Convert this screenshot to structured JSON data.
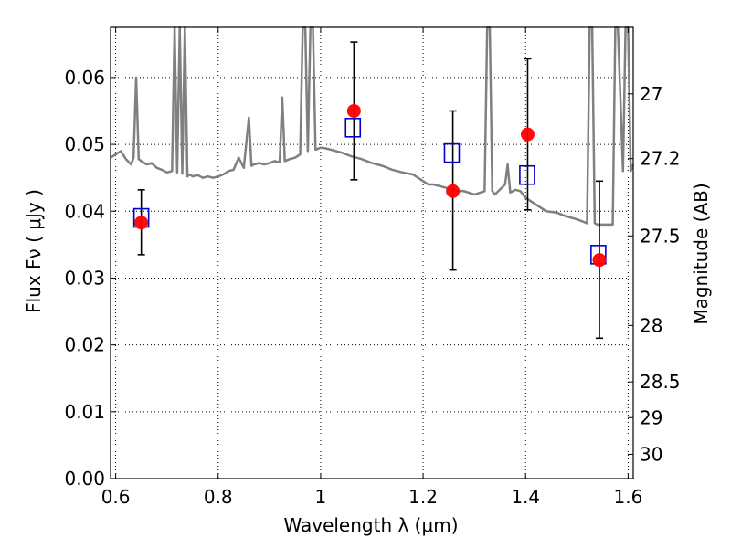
{
  "chart_data": {
    "type": "scatter",
    "xlabel": "Wavelength  λ (μm)",
    "ylabel": "Flux  Fν  ( μJy )",
    "y2label": "Magnitude (AB)",
    "xlim": [
      0.59,
      1.61
    ],
    "ylim": [
      0.0,
      0.0675
    ],
    "grid": true,
    "x_ticks": [
      {
        "value": 0.6,
        "label": "0.6"
      },
      {
        "value": 0.8,
        "label": "0.8"
      },
      {
        "value": 1.0,
        "label": "1"
      },
      {
        "value": 1.2,
        "label": "1.2"
      },
      {
        "value": 1.4,
        "label": "1.4"
      },
      {
        "value": 1.6,
        "label": "1.6"
      }
    ],
    "y_ticks": [
      {
        "value": 0.0,
        "label": "0.00"
      },
      {
        "value": 0.01,
        "label": "0.01"
      },
      {
        "value": 0.02,
        "label": "0.02"
      },
      {
        "value": 0.03,
        "label": "0.03"
      },
      {
        "value": 0.04,
        "label": "0.04"
      },
      {
        "value": 0.05,
        "label": "0.05"
      },
      {
        "value": 0.06,
        "label": "0.06"
      }
    ],
    "y2_ticks": [
      {
        "value": 27.0,
        "label": "27"
      },
      {
        "value": 27.2,
        "label": "27.2"
      },
      {
        "value": 27.5,
        "label": "27.5"
      },
      {
        "value": 28.0,
        "label": "28"
      },
      {
        "value": 28.5,
        "label": "28.5"
      },
      {
        "value": 29.0,
        "label": "29"
      },
      {
        "value": 30.0,
        "label": "30"
      }
    ],
    "series": [
      {
        "kind": "line",
        "color": "#808080",
        "x": [
          0.59,
          0.6,
          0.61,
          0.62,
          0.63,
          0.635,
          0.64,
          0.645,
          0.65,
          0.66,
          0.67,
          0.68,
          0.69,
          0.7,
          0.71,
          0.715,
          0.72,
          0.725,
          0.73,
          0.735,
          0.74,
          0.745,
          0.75,
          0.76,
          0.77,
          0.78,
          0.79,
          0.8,
          0.81,
          0.82,
          0.83,
          0.84,
          0.85,
          0.86,
          0.865,
          0.87,
          0.88,
          0.89,
          0.9,
          0.91,
          0.92,
          0.925,
          0.93,
          0.94,
          0.95,
          0.96,
          0.965,
          0.97,
          0.975,
          0.98,
          0.985,
          0.99,
          1.0,
          1.01,
          1.02,
          1.03,
          1.04,
          1.05,
          1.06,
          1.07,
          1.08,
          1.09,
          1.1,
          1.12,
          1.14,
          1.16,
          1.18,
          1.2,
          1.21,
          1.22,
          1.24,
          1.26,
          1.27,
          1.28,
          1.3,
          1.32,
          1.325,
          1.33,
          1.335,
          1.34,
          1.36,
          1.365,
          1.37,
          1.38,
          1.39,
          1.4,
          1.42,
          1.44,
          1.46,
          1.48,
          1.5,
          1.52,
          1.525,
          1.53,
          1.535,
          1.54,
          1.56,
          1.57,
          1.575,
          1.58,
          1.59,
          1.595,
          1.6,
          1.605,
          1.61
        ],
        "y": [
          0.048,
          0.0485,
          0.049,
          0.0478,
          0.047,
          0.048,
          0.06,
          0.0478,
          0.0475,
          0.047,
          0.0472,
          0.0465,
          0.0462,
          0.0458,
          0.046,
          0.0675,
          0.0458,
          0.0675,
          0.0456,
          0.0675,
          0.0452,
          0.0455,
          0.0452,
          0.0454,
          0.045,
          0.0452,
          0.045,
          0.0452,
          0.0455,
          0.046,
          0.0462,
          0.048,
          0.0465,
          0.054,
          0.0468,
          0.047,
          0.0472,
          0.047,
          0.0472,
          0.0475,
          0.0473,
          0.057,
          0.0475,
          0.0478,
          0.048,
          0.0485,
          0.0675,
          0.0675,
          0.049,
          0.0675,
          0.0675,
          0.0492,
          0.0495,
          0.0494,
          0.0492,
          0.049,
          0.0488,
          0.0485,
          0.0482,
          0.048,
          0.0478,
          0.0475,
          0.0472,
          0.0468,
          0.0462,
          0.0458,
          0.0455,
          0.0445,
          0.044,
          0.044,
          0.0436,
          0.0432,
          0.043,
          0.043,
          0.0425,
          0.043,
          0.0675,
          0.0675,
          0.043,
          0.0425,
          0.044,
          0.047,
          0.0428,
          0.0432,
          0.043,
          0.042,
          0.041,
          0.04,
          0.0398,
          0.0392,
          0.0388,
          0.0382,
          0.0675,
          0.0675,
          0.0382,
          0.038,
          0.038,
          0.038,
          0.0675,
          0.0675,
          0.046,
          0.0675,
          0.0675,
          0.046,
          0.047
        ]
      },
      {
        "kind": "points",
        "marker": "open-square",
        "color": "#0000cc",
        "x": [
          0.65,
          1.063,
          1.256,
          1.403,
          1.542
        ],
        "y": [
          0.039,
          0.0525,
          0.0487,
          0.0454,
          0.0335
        ]
      },
      {
        "kind": "points",
        "marker": "filled-circle",
        "color": "#ff0000",
        "x": [
          0.65,
          1.065,
          1.258,
          1.404,
          1.544
        ],
        "y": [
          0.0383,
          0.055,
          0.043,
          0.0515,
          0.0327
        ],
        "error_low": [
          0.0335,
          0.0447,
          0.0312,
          0.0402,
          0.021
        ],
        "error_high": [
          0.0432,
          0.0653,
          0.055,
          0.0628,
          0.0445
        ],
        "error_color": "#000000"
      }
    ]
  }
}
